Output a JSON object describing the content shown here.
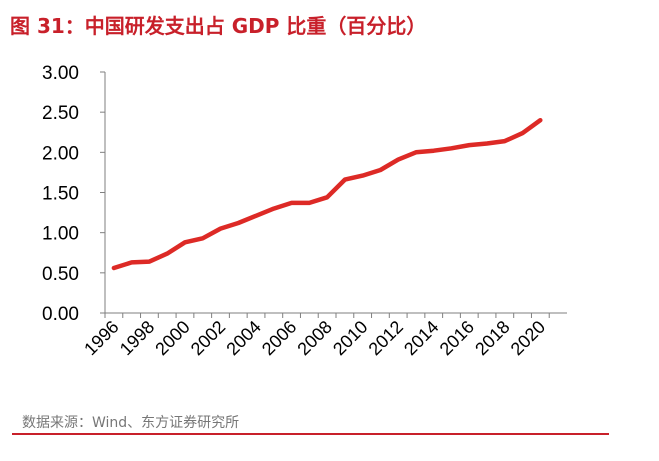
{
  "figure": {
    "title": "图 31：中国研发支出占 GDP 比重（百分比）",
    "source": "数据来源：Wind、东方证券研究所"
  },
  "colors": {
    "accent": "#c8202a",
    "line": "#dd2a26",
    "axis": "#7f7f7f",
    "source_text": "#777777"
  },
  "chart_data": {
    "type": "line",
    "title": "中国研发支出占 GDP 比重（百分比）",
    "xlabel": "",
    "ylabel": "",
    "ylim": [
      0,
      3
    ],
    "yticks": [
      "0.00",
      "0.50",
      "1.00",
      "1.50",
      "2.00",
      "2.50",
      "3.00"
    ],
    "xticks": [
      "1996",
      "1998",
      "2000",
      "2002",
      "2004",
      "2006",
      "2008",
      "2010",
      "2012",
      "2014",
      "2016",
      "2018",
      "2020"
    ],
    "grid": false,
    "legend": "none",
    "x": [
      1996,
      1997,
      1998,
      1999,
      2000,
      2001,
      2002,
      2003,
      2004,
      2005,
      2006,
      2007,
      2008,
      2009,
      2010,
      2011,
      2012,
      2013,
      2014,
      2015,
      2016,
      2017,
      2018,
      2019,
      2020
    ],
    "series": [
      {
        "values": [
          0.56,
          0.63,
          0.64,
          0.74,
          0.88,
          0.93,
          1.05,
          1.12,
          1.21,
          1.3,
          1.37,
          1.37,
          1.44,
          1.66,
          1.71,
          1.78,
          1.91,
          2.0,
          2.02,
          2.05,
          2.09,
          2.11,
          2.14,
          2.24,
          2.4
        ]
      }
    ]
  }
}
